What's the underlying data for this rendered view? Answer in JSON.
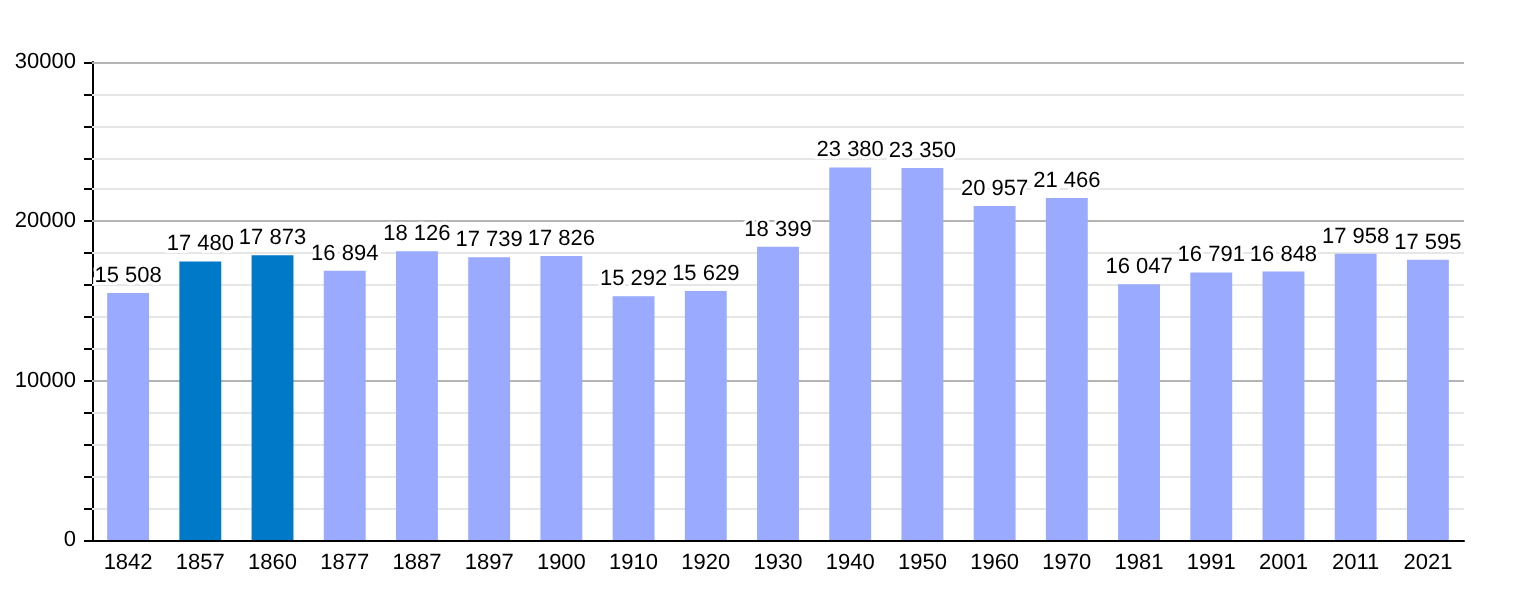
{
  "chart_data": {
    "type": "bar",
    "categories": [
      "1842",
      "1857",
      "1860",
      "1877",
      "1887",
      "1897",
      "1900",
      "1910",
      "1920",
      "1930",
      "1940",
      "1950",
      "1960",
      "1970",
      "1981",
      "1991",
      "2001",
      "2011",
      "2021"
    ],
    "values": [
      15508,
      17480,
      17873,
      16894,
      18126,
      17739,
      17826,
      15292,
      15629,
      18399,
      23380,
      23350,
      20957,
      21466,
      16047,
      16791,
      16848,
      17958,
      17595
    ],
    "value_labels": [
      "15 508",
      "17 480",
      "17 873",
      "16 894",
      "18 126",
      "17 739",
      "17 826",
      "15 292",
      "15 629",
      "18 399",
      "23 380",
      "23 350",
      "20 957",
      "21 466",
      "16 047",
      "16 791",
      "16 848",
      "17 958",
      "17 595"
    ],
    "colors": [
      "#99aaff",
      "#0079c8",
      "#0079c8",
      "#99aaff",
      "#99aaff",
      "#99aaff",
      "#99aaff",
      "#99aaff",
      "#99aaff",
      "#99aaff",
      "#99aaff",
      "#99aaff",
      "#99aaff",
      "#99aaff",
      "#99aaff",
      "#99aaff",
      "#99aaff",
      "#99aaff",
      "#99aaff"
    ],
    "ylim": [
      0,
      30000
    ],
    "yticks": [
      0,
      {
        "value": 2000,
        "label": null
      },
      {
        "value": 4000,
        "label": null
      },
      {
        "value": 6000,
        "label": null
      },
      {
        "value": 8000,
        "label": null
      },
      10000,
      {
        "value": 12000,
        "label": null
      },
      {
        "value": 14000,
        "label": null
      },
      {
        "value": 16000,
        "label": null
      },
      {
        "value": 18000,
        "label": null
      },
      20000,
      {
        "value": 22000,
        "label": null
      },
      {
        "value": 24000,
        "label": null
      },
      {
        "value": 26000,
        "label": null
      },
      {
        "value": 28000,
        "label": null
      },
      30000
    ],
    "grid": true
  }
}
